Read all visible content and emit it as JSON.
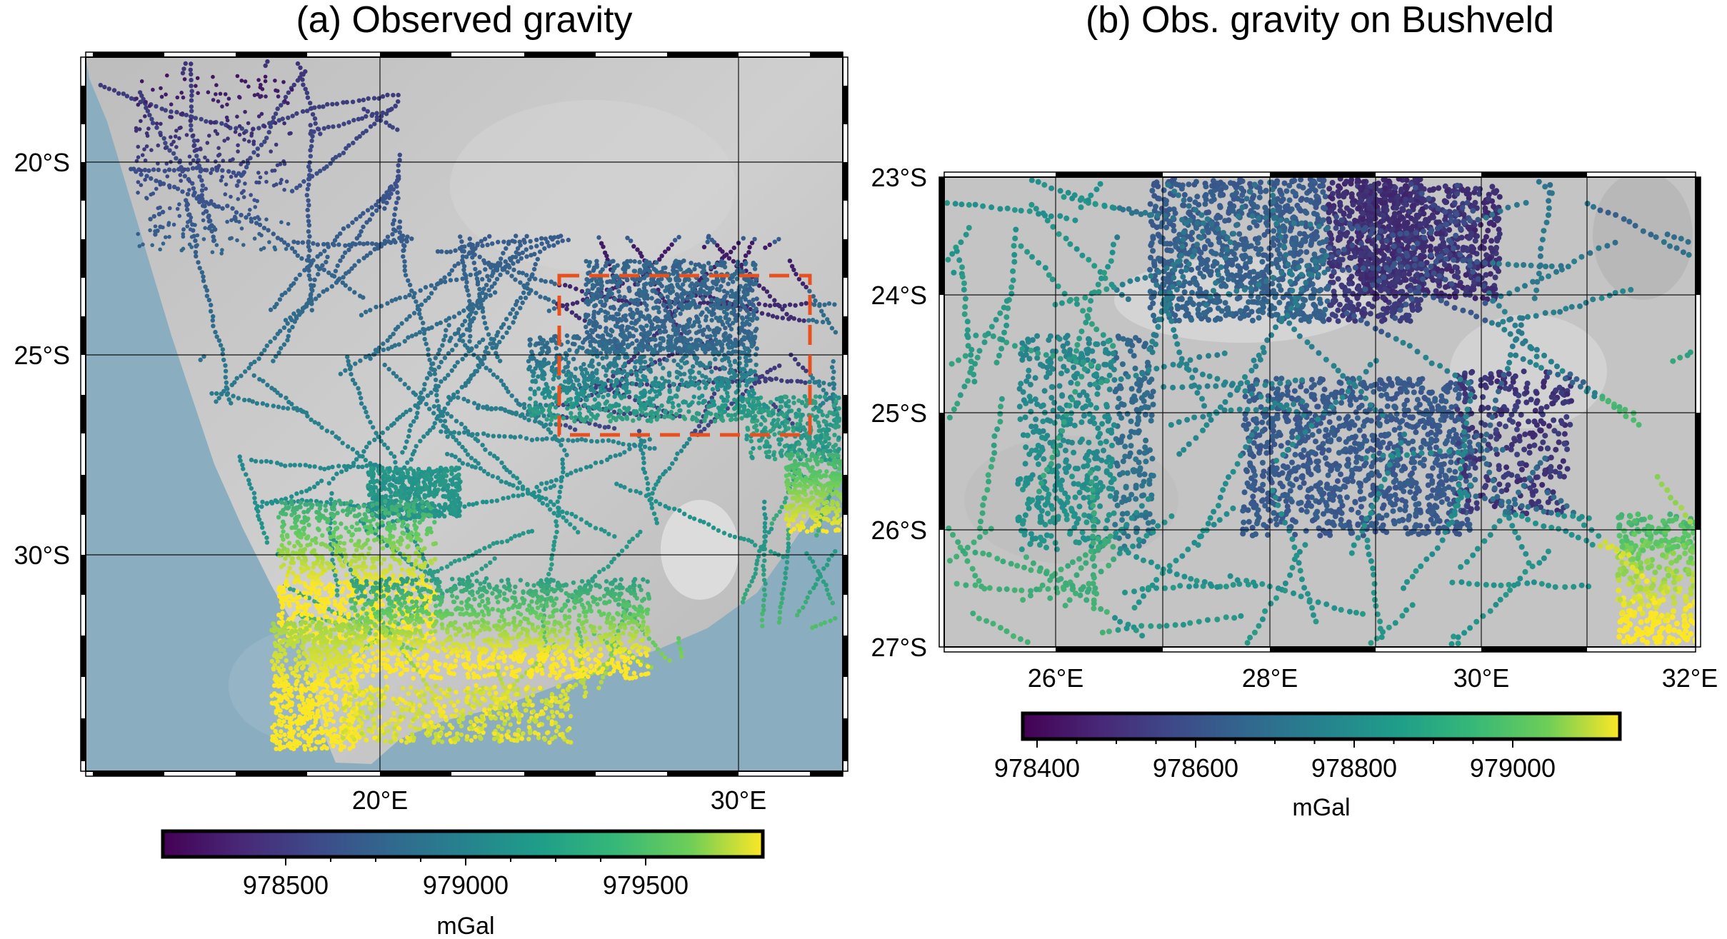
{
  "panel_a": {
    "title": "(a) Observed gravity",
    "lat_labels": [
      "20°S",
      "25°S",
      "30°S"
    ],
    "lon_labels": [
      "20°E",
      "30°E"
    ],
    "colorbar": {
      "ticks": [
        "978500",
        "979000",
        "979500"
      ],
      "unit": "mGal",
      "range": [
        978150,
        979720
      ]
    },
    "inset_box": {
      "color": "#e8501e",
      "label": ""
    }
  },
  "panel_b": {
    "title": "(b) Obs. gravity on Bushveld",
    "lat_labels": [
      "23°S",
      "24°S",
      "25°S",
      "26°S",
      "27°S"
    ],
    "lon_labels": [
      "26°E",
      "28°E",
      "30°E",
      "32°E"
    ],
    "colorbar": {
      "ticks": [
        "978400",
        "978600",
        "978800",
        "979000"
      ],
      "unit": "mGal",
      "range": [
        978380,
        979130
      ]
    }
  },
  "colormap": "viridis",
  "colors": {
    "ocean": "#8aaec0",
    "land": "#c9c9c9",
    "viridis": [
      "#440154",
      "#3b528b",
      "#21918c",
      "#5ec962",
      "#fde725"
    ]
  }
}
